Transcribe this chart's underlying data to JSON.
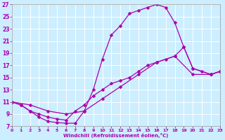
{
  "xlabel": "Windchill (Refroidissement éolien,°C)",
  "bg_color": "#cceeff",
  "line_color": "#aa00aa",
  "grid_color": "#aaddcc",
  "xmin": 0,
  "xmax": 23,
  "ymin": 7,
  "ymax": 27,
  "yticks": [
    7,
    9,
    11,
    13,
    15,
    17,
    19,
    21,
    23,
    25,
    27
  ],
  "xticks": [
    0,
    1,
    2,
    3,
    4,
    5,
    6,
    7,
    8,
    9,
    10,
    11,
    12,
    13,
    14,
    15,
    16,
    17,
    18,
    19,
    20,
    21,
    22,
    23
  ],
  "line1_x": [
    0,
    1,
    2,
    3,
    4,
    5,
    6,
    7,
    8,
    9,
    10,
    11,
    12,
    13,
    14,
    15,
    16,
    17,
    18,
    19,
    20,
    21,
    22,
    23
  ],
  "line1_y": [
    11.0,
    10.5,
    9.5,
    8.5,
    7.8,
    7.6,
    7.5,
    7.5,
    9.5,
    13.0,
    18.0,
    22.0,
    23.5,
    25.5,
    26.0,
    26.5,
    27.0,
    26.5,
    24.0,
    20.0,
    16.5,
    16.0,
    15.5,
    16.0
  ],
  "line2_x": [
    0,
    1,
    2,
    3,
    4,
    5,
    6,
    7,
    8,
    9,
    10,
    11,
    12,
    13,
    14,
    15,
    16,
    17,
    18,
    19,
    20,
    22,
    23
  ],
  "line2_y": [
    11.0,
    10.5,
    9.5,
    9.0,
    8.5,
    8.2,
    8.0,
    9.5,
    10.5,
    12.0,
    13.0,
    14.0,
    14.5,
    15.0,
    16.0,
    17.0,
    17.5,
    18.0,
    18.5,
    20.0,
    16.5,
    15.5,
    16.0
  ],
  "line3_x": [
    0,
    2,
    4,
    6,
    8,
    10,
    12,
    14,
    16,
    18,
    20,
    22,
    23
  ],
  "line3_y": [
    11.0,
    10.5,
    9.5,
    9.0,
    9.5,
    11.5,
    13.5,
    15.5,
    17.5,
    18.5,
    15.5,
    15.5,
    16.0
  ]
}
